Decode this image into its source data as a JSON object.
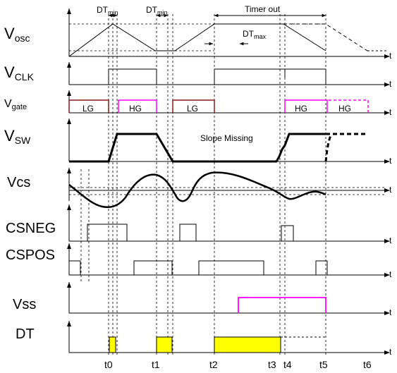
{
  "signals": {
    "vosc": {
      "name": "V",
      "sub": "osc"
    },
    "vclk": {
      "name": "V",
      "sub": "CLK"
    },
    "vgate": {
      "name": "V",
      "sub": "gate"
    },
    "vsw": {
      "name": "V",
      "sub": "SW"
    },
    "vcs": {
      "name": "Vcs"
    },
    "csneg": {
      "name": "CSNEG"
    },
    "cspos": {
      "name": "CSPOS"
    },
    "vss": {
      "name": "Vss"
    },
    "dt": {
      "name": "DT"
    }
  },
  "axis_label": "t",
  "annotations": {
    "dt_min_1": {
      "main": "DT",
      "sub": "min"
    },
    "dt_min_2": {
      "main": "DT",
      "sub": "min"
    },
    "dt_max": {
      "main": "DT",
      "sub": "max"
    },
    "timer_out": "Timer out",
    "slope_missing": "Slope Missing"
  },
  "gate_pulses": [
    "LG",
    "HG",
    "LG",
    "HG",
    "HG"
  ],
  "time_markers": [
    "t0",
    "t1",
    "t2",
    "t3",
    "t4",
    "t5",
    "t6"
  ],
  "colors": {
    "lg": "#8b1a1a",
    "hg": "#ff00ff",
    "dt_fill": "#ffff00",
    "vss": "#ff00ff",
    "line": "#000000"
  }
}
